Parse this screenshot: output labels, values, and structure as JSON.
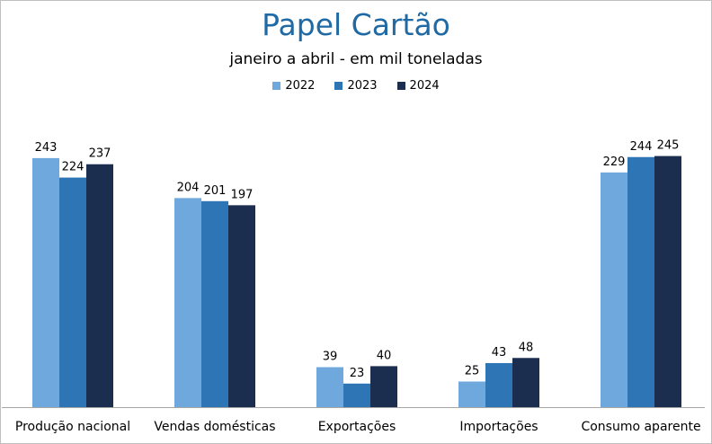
{
  "chart_data": {
    "type": "bar",
    "title": "Papel Cartão",
    "subtitle": "janeiro a abril  -  em mil toneladas",
    "categories": [
      "Produção nacional",
      "Vendas domésticas",
      "Exportações",
      "Importações",
      "Consumo aparente"
    ],
    "series": [
      {
        "name": "2022",
        "color": "#6fa8dc",
        "values": [
          243,
          204,
          39,
          25,
          229
        ]
      },
      {
        "name": "2023",
        "color": "#2e75b6",
        "values": [
          224,
          201,
          23,
          43,
          244
        ]
      },
      {
        "name": "2024",
        "color": "#1c2e4f",
        "values": [
          237,
          197,
          40,
          48,
          245
        ]
      }
    ],
    "ylim": [
      0,
      285
    ],
    "legend_position": "top",
    "grid": false
  }
}
